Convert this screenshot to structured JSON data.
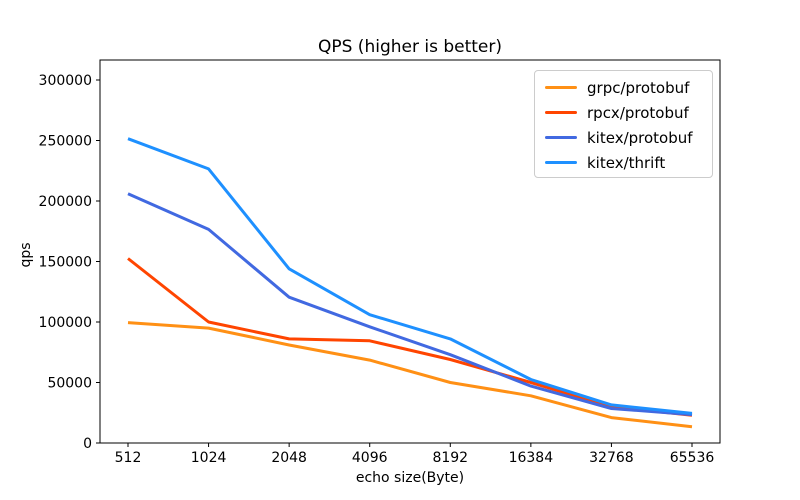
{
  "chart_data": {
    "type": "line",
    "title": "QPS (higher is better)",
    "xlabel": "echo size(Byte)",
    "ylabel": "qps",
    "categories": [
      "512",
      "1024",
      "2048",
      "4096",
      "8192",
      "16384",
      "32768",
      "65536"
    ],
    "yticks": [
      0,
      50000,
      100000,
      150000,
      200000,
      250000,
      300000
    ],
    "ylim": [
      0,
      316000
    ],
    "grid": false,
    "legend_position": "upper right",
    "axis_color": "#000000",
    "legend_border_color": "#cccccc",
    "series": [
      {
        "name": "grpc/protobuf",
        "color": "#ff9015",
        "values": [
          99500,
          95000,
          81000,
          68500,
          50000,
          39000,
          21000,
          13500
        ]
      },
      {
        "name": "rpcx/protobuf",
        "color": "#ff4500",
        "values": [
          152500,
          100000,
          86000,
          84500,
          69000,
          50000,
          30000,
          23000
        ]
      },
      {
        "name": "kitex/protobuf",
        "color": "#4169e1",
        "values": [
          206000,
          176500,
          120500,
          96000,
          73000,
          47000,
          28500,
          23500
        ]
      },
      {
        "name": "kitex/thrift",
        "color": "#1e90ff",
        "values": [
          251500,
          226500,
          144000,
          106000,
          86000,
          52500,
          31500,
          24500
        ]
      }
    ]
  }
}
